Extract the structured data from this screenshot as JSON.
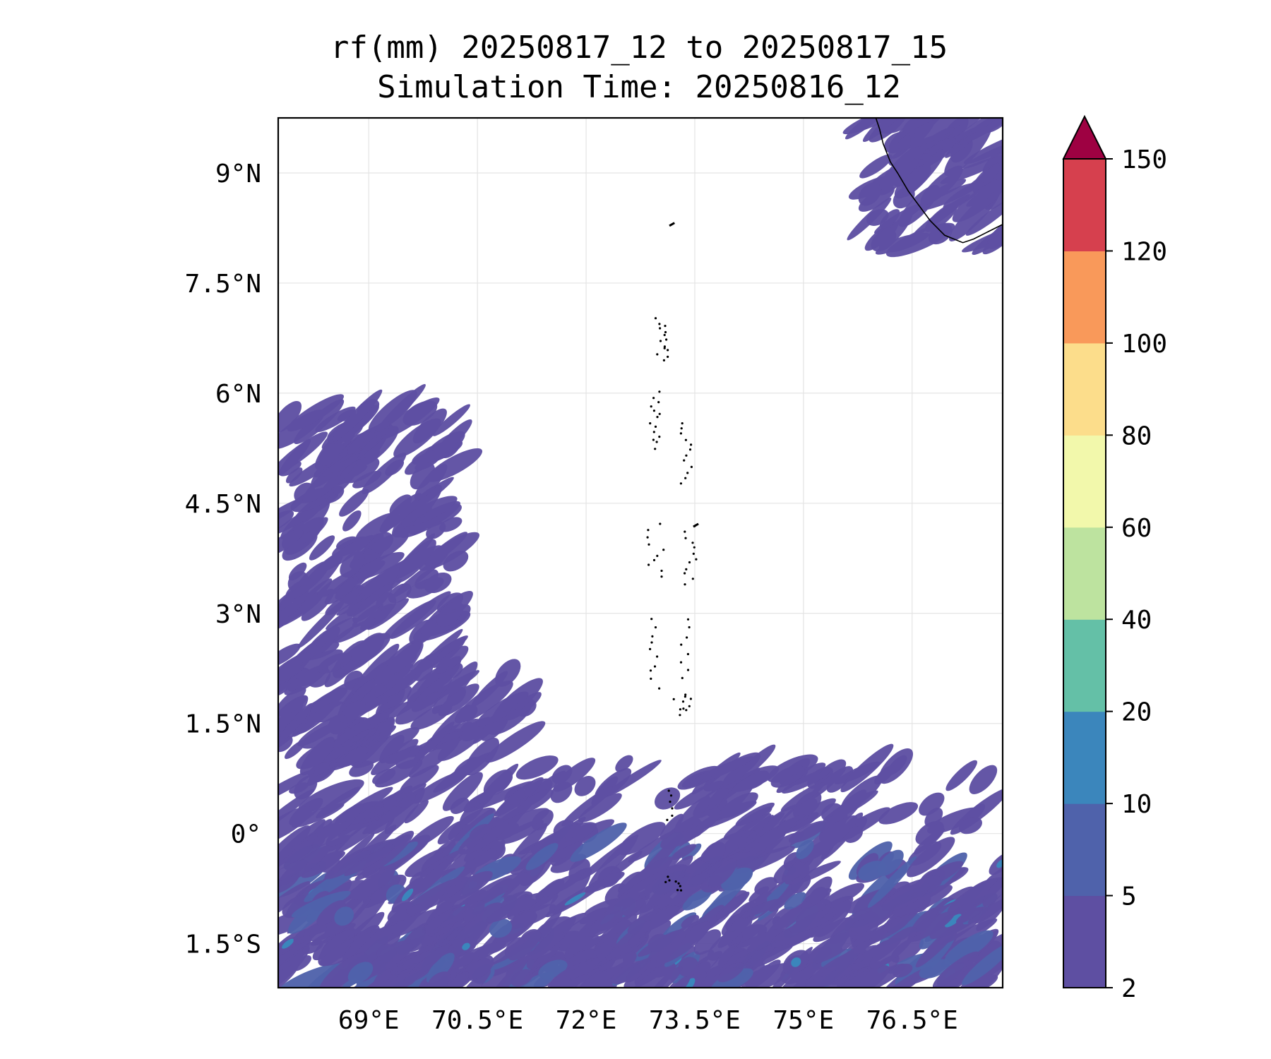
{
  "title": "rf(mm) 20250817_12 to 20250817_15",
  "subtitle": "Simulation Time: 20250816_12",
  "map": {
    "lon_range": [
      67.75,
      77.75
    ],
    "lat_range": [
      -2.1,
      9.75
    ],
    "lon_ticks": [
      {
        "value": 69,
        "label": "69°E"
      },
      {
        "value": 70.5,
        "label": "70.5°E"
      },
      {
        "value": 72,
        "label": "72°E"
      },
      {
        "value": 73.5,
        "label": "73.5°E"
      },
      {
        "value": 75,
        "label": "75°E"
      },
      {
        "value": 76.5,
        "label": "76.5°E"
      }
    ],
    "lat_ticks": [
      {
        "value": 9,
        "label": "9°N"
      },
      {
        "value": 7.5,
        "label": "7.5°N"
      },
      {
        "value": 6,
        "label": "6°N"
      },
      {
        "value": 4.5,
        "label": "4.5°N"
      },
      {
        "value": 3,
        "label": "3°N"
      },
      {
        "value": 1.5,
        "label": "1.5°N"
      },
      {
        "value": 0,
        "label": "0°"
      },
      {
        "value": -1.5,
        "label": "1.5°S"
      }
    ],
    "grid": true,
    "coastline_india": [
      [
        76.0,
        9.75
      ],
      [
        76.05,
        9.6
      ],
      [
        76.1,
        9.4
      ],
      [
        76.2,
        9.15
      ],
      [
        76.3,
        9.0
      ],
      [
        76.45,
        8.75
      ],
      [
        76.6,
        8.55
      ],
      [
        76.75,
        8.35
      ],
      [
        76.95,
        8.15
      ],
      [
        77.2,
        8.05
      ],
      [
        77.35,
        8.1
      ],
      [
        77.55,
        8.2
      ],
      [
        77.75,
        8.3
      ]
    ]
  },
  "colorbar": {
    "levels": [
      2,
      5,
      10,
      20,
      40,
      60,
      80,
      100,
      120,
      150
    ],
    "labels": [
      "2",
      "5",
      "10",
      "20",
      "40",
      "60",
      "80",
      "100",
      "120",
      "150"
    ],
    "colors": [
      "#5e4fa2",
      "#4f62ab",
      "#3b86bc",
      "#64c0a7",
      "#bde39f",
      "#f2f8ab",
      "#fcdd8b",
      "#f9995a",
      "#d6404e"
    ],
    "extend_color": "#9e0142"
  }
}
